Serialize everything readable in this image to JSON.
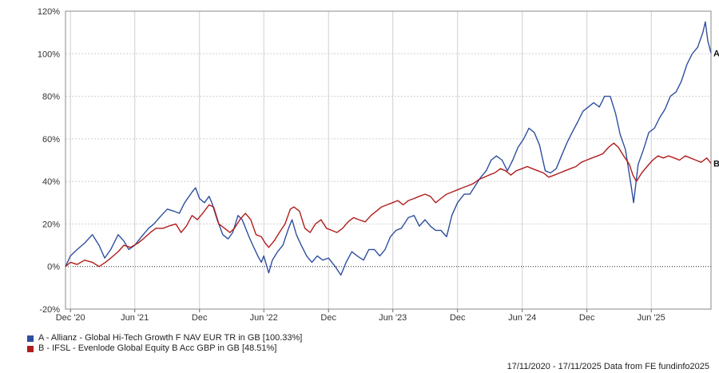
{
  "chart_data": {
    "type": "line",
    "title": "",
    "xlabel": "",
    "ylabel": "",
    "ylim": [
      -20,
      120
    ],
    "yticks": [
      -20,
      0,
      20,
      40,
      60,
      80,
      100,
      120
    ],
    "ytick_labels": [
      "-20%",
      "0%",
      "20%",
      "40%",
      "60%",
      "80%",
      "100%",
      "120%"
    ],
    "x_start": "2020-11-17",
    "x_end": "2025-11-17",
    "xticks": [
      {
        "date": "2020-12-01",
        "label": "Dec '20"
      },
      {
        "date": "2021-06-01",
        "label": "Jun '21"
      },
      {
        "date": "2021-12-01",
        "label": "Dec"
      },
      {
        "date": "2022-06-01",
        "label": "Jun '22"
      },
      {
        "date": "2022-12-01",
        "label": "Dec"
      },
      {
        "date": "2023-06-01",
        "label": "Jun '23"
      },
      {
        "date": "2023-12-01",
        "label": "Dec"
      },
      {
        "date": "2024-06-01",
        "label": "Jun '24"
      },
      {
        "date": "2024-12-01",
        "label": "Dec"
      },
      {
        "date": "2025-06-01",
        "label": "Jun '25"
      }
    ],
    "grid": true,
    "zero_line": "dotted",
    "legend_position": "bottom-left",
    "series": [
      {
        "name": "A - Allianz - Global Hi-Tech Growth F NAV EUR TR in GB [100.33%]",
        "end_label": "A",
        "color": "#2e4f9e",
        "points": [
          [
            "2020-11-17",
            0
          ],
          [
            "2020-12-01",
            5
          ],
          [
            "2020-12-20",
            8
          ],
          [
            "2021-01-10",
            11
          ],
          [
            "2021-02-01",
            15
          ],
          [
            "2021-02-20",
            10
          ],
          [
            "2021-03-08",
            4
          ],
          [
            "2021-03-25",
            8
          ],
          [
            "2021-04-15",
            15
          ],
          [
            "2021-05-01",
            12
          ],
          [
            "2021-05-15",
            8
          ],
          [
            "2021-06-01",
            10
          ],
          [
            "2021-06-20",
            14
          ],
          [
            "2021-07-10",
            18
          ],
          [
            "2021-07-25",
            20
          ],
          [
            "2021-08-15",
            24
          ],
          [
            "2021-09-01",
            27
          ],
          [
            "2021-09-20",
            26
          ],
          [
            "2021-10-05",
            25
          ],
          [
            "2021-10-20",
            30
          ],
          [
            "2021-11-10",
            35
          ],
          [
            "2021-11-20",
            37
          ],
          [
            "2021-12-01",
            32
          ],
          [
            "2021-12-15",
            30
          ],
          [
            "2021-12-28",
            33
          ],
          [
            "2022-01-05",
            30
          ],
          [
            "2022-01-20",
            22
          ],
          [
            "2022-02-05",
            15
          ],
          [
            "2022-02-20",
            13
          ],
          [
            "2022-03-05",
            16
          ],
          [
            "2022-03-20",
            24
          ],
          [
            "2022-04-01",
            22
          ],
          [
            "2022-04-20",
            14
          ],
          [
            "2022-05-01",
            10
          ],
          [
            "2022-05-15",
            5
          ],
          [
            "2022-05-25",
            2
          ],
          [
            "2022-06-01",
            5
          ],
          [
            "2022-06-15",
            -3
          ],
          [
            "2022-06-25",
            3
          ],
          [
            "2022-07-10",
            7
          ],
          [
            "2022-07-25",
            10
          ],
          [
            "2022-08-10",
            18
          ],
          [
            "2022-08-20",
            22
          ],
          [
            "2022-09-01",
            15
          ],
          [
            "2022-09-15",
            10
          ],
          [
            "2022-09-30",
            5
          ],
          [
            "2022-10-15",
            2
          ],
          [
            "2022-10-30",
            5
          ],
          [
            "2022-11-15",
            3
          ],
          [
            "2022-12-01",
            4
          ],
          [
            "2022-12-20",
            0
          ],
          [
            "2023-01-05",
            -4
          ],
          [
            "2023-01-20",
            2
          ],
          [
            "2023-02-05",
            7
          ],
          [
            "2023-02-20",
            5
          ],
          [
            "2023-03-10",
            3
          ],
          [
            "2023-03-25",
            8
          ],
          [
            "2023-04-10",
            8
          ],
          [
            "2023-04-25",
            5
          ],
          [
            "2023-05-10",
            8
          ],
          [
            "2023-05-25",
            14
          ],
          [
            "2023-06-10",
            17
          ],
          [
            "2023-06-25",
            18
          ],
          [
            "2023-07-15",
            23
          ],
          [
            "2023-07-31",
            24
          ],
          [
            "2023-08-15",
            19
          ],
          [
            "2023-08-31",
            22
          ],
          [
            "2023-09-15",
            19
          ],
          [
            "2023-09-30",
            17
          ],
          [
            "2023-10-15",
            17
          ],
          [
            "2023-10-31",
            14
          ],
          [
            "2023-11-15",
            24
          ],
          [
            "2023-12-01",
            30
          ],
          [
            "2023-12-20",
            34
          ],
          [
            "2024-01-05",
            34
          ],
          [
            "2024-01-20",
            38
          ],
          [
            "2024-02-05",
            42
          ],
          [
            "2024-02-20",
            45
          ],
          [
            "2024-03-05",
            50
          ],
          [
            "2024-03-20",
            52
          ],
          [
            "2024-04-05",
            50
          ],
          [
            "2024-04-20",
            45
          ],
          [
            "2024-05-05",
            50
          ],
          [
            "2024-05-20",
            56
          ],
          [
            "2024-06-05",
            60
          ],
          [
            "2024-06-20",
            65
          ],
          [
            "2024-07-05",
            63
          ],
          [
            "2024-07-20",
            57
          ],
          [
            "2024-08-05",
            45
          ],
          [
            "2024-08-20",
            44
          ],
          [
            "2024-09-05",
            46
          ],
          [
            "2024-09-20",
            52
          ],
          [
            "2024-10-05",
            58
          ],
          [
            "2024-10-20",
            63
          ],
          [
            "2024-11-05",
            68
          ],
          [
            "2024-11-20",
            73
          ],
          [
            "2024-12-05",
            75
          ],
          [
            "2024-12-20",
            77
          ],
          [
            "2025-01-05",
            75
          ],
          [
            "2025-01-20",
            80
          ],
          [
            "2025-02-05",
            80
          ],
          [
            "2025-02-20",
            72
          ],
          [
            "2025-03-05",
            62
          ],
          [
            "2025-03-20",
            55
          ],
          [
            "2025-04-05",
            38
          ],
          [
            "2025-04-12",
            30
          ],
          [
            "2025-04-25",
            48
          ],
          [
            "2025-05-10",
            55
          ],
          [
            "2025-05-25",
            63
          ],
          [
            "2025-06-10",
            65
          ],
          [
            "2025-06-25",
            70
          ],
          [
            "2025-07-10",
            74
          ],
          [
            "2025-07-25",
            80
          ],
          [
            "2025-08-10",
            82
          ],
          [
            "2025-08-25",
            87
          ],
          [
            "2025-09-10",
            95
          ],
          [
            "2025-09-25",
            100
          ],
          [
            "2025-10-10",
            103
          ],
          [
            "2025-10-25",
            110
          ],
          [
            "2025-11-01",
            115
          ],
          [
            "2025-11-08",
            106
          ],
          [
            "2025-11-17",
            100.33
          ]
        ]
      },
      {
        "name": "B - IFSL - Evenlode Global Equity B Acc GBP in GB [48.51%]",
        "end_label": "B",
        "color": "#b01c1c",
        "points": [
          [
            "2020-11-17",
            0
          ],
          [
            "2020-12-01",
            2
          ],
          [
            "2020-12-20",
            1
          ],
          [
            "2021-01-10",
            3
          ],
          [
            "2021-02-01",
            2
          ],
          [
            "2021-02-20",
            0
          ],
          [
            "2021-03-10",
            2
          ],
          [
            "2021-03-25",
            4
          ],
          [
            "2021-04-15",
            7
          ],
          [
            "2021-05-01",
            10
          ],
          [
            "2021-05-20",
            9
          ],
          [
            "2021-06-10",
            11
          ],
          [
            "2021-06-25",
            13
          ],
          [
            "2021-07-15",
            16
          ],
          [
            "2021-07-31",
            18
          ],
          [
            "2021-08-20",
            18
          ],
          [
            "2021-09-05",
            19
          ],
          [
            "2021-09-25",
            20
          ],
          [
            "2021-10-10",
            16
          ],
          [
            "2021-10-25",
            19
          ],
          [
            "2021-11-10",
            24
          ],
          [
            "2021-11-25",
            22
          ],
          [
            "2021-12-10",
            25
          ],
          [
            "2021-12-28",
            29
          ],
          [
            "2022-01-10",
            28
          ],
          [
            "2022-01-25",
            20
          ],
          [
            "2022-02-10",
            18
          ],
          [
            "2022-02-25",
            16
          ],
          [
            "2022-03-10",
            18
          ],
          [
            "2022-03-25",
            22
          ],
          [
            "2022-04-10",
            25
          ],
          [
            "2022-04-25",
            22
          ],
          [
            "2022-05-10",
            15
          ],
          [
            "2022-05-25",
            14
          ],
          [
            "2022-06-05",
            11
          ],
          [
            "2022-06-15",
            9
          ],
          [
            "2022-06-30",
            12
          ],
          [
            "2022-07-15",
            16
          ],
          [
            "2022-07-31",
            20
          ],
          [
            "2022-08-15",
            27
          ],
          [
            "2022-08-25",
            28
          ],
          [
            "2022-09-10",
            26
          ],
          [
            "2022-09-25",
            18
          ],
          [
            "2022-10-10",
            16
          ],
          [
            "2022-10-25",
            20
          ],
          [
            "2022-11-10",
            22
          ],
          [
            "2022-11-25",
            18
          ],
          [
            "2022-12-10",
            17
          ],
          [
            "2022-12-25",
            16
          ],
          [
            "2023-01-10",
            18
          ],
          [
            "2023-01-25",
            21
          ],
          [
            "2023-02-10",
            23
          ],
          [
            "2023-02-25",
            22
          ],
          [
            "2023-03-15",
            21
          ],
          [
            "2023-03-31",
            24
          ],
          [
            "2023-04-15",
            26
          ],
          [
            "2023-04-30",
            28
          ],
          [
            "2023-05-15",
            29
          ],
          [
            "2023-05-31",
            30
          ],
          [
            "2023-06-15",
            31
          ],
          [
            "2023-06-30",
            29
          ],
          [
            "2023-07-15",
            31
          ],
          [
            "2023-07-31",
            32
          ],
          [
            "2023-08-15",
            33
          ],
          [
            "2023-08-31",
            34
          ],
          [
            "2023-09-15",
            33
          ],
          [
            "2023-09-30",
            30
          ],
          [
            "2023-10-15",
            32
          ],
          [
            "2023-10-31",
            34
          ],
          [
            "2023-11-15",
            35
          ],
          [
            "2023-11-30",
            36
          ],
          [
            "2023-12-15",
            37
          ],
          [
            "2023-12-31",
            38
          ],
          [
            "2024-01-15",
            39
          ],
          [
            "2024-01-31",
            41
          ],
          [
            "2024-02-15",
            42
          ],
          [
            "2024-02-28",
            43
          ],
          [
            "2024-03-15",
            44
          ],
          [
            "2024-03-31",
            46
          ],
          [
            "2024-04-15",
            45
          ],
          [
            "2024-04-30",
            43
          ],
          [
            "2024-05-15",
            45
          ],
          [
            "2024-05-31",
            46
          ],
          [
            "2024-06-15",
            47
          ],
          [
            "2024-06-30",
            46
          ],
          [
            "2024-07-15",
            45
          ],
          [
            "2024-07-31",
            44
          ],
          [
            "2024-08-15",
            42
          ],
          [
            "2024-08-31",
            43
          ],
          [
            "2024-09-15",
            44
          ],
          [
            "2024-09-30",
            45
          ],
          [
            "2024-10-15",
            46
          ],
          [
            "2024-10-31",
            47
          ],
          [
            "2024-11-15",
            49
          ],
          [
            "2024-11-30",
            50
          ],
          [
            "2024-12-15",
            51
          ],
          [
            "2024-12-31",
            52
          ],
          [
            "2025-01-15",
            53
          ],
          [
            "2025-01-31",
            56
          ],
          [
            "2025-02-15",
            58
          ],
          [
            "2025-02-28",
            56
          ],
          [
            "2025-03-15",
            52
          ],
          [
            "2025-03-31",
            48
          ],
          [
            "2025-04-10",
            43
          ],
          [
            "2025-04-20",
            40
          ],
          [
            "2025-05-05",
            44
          ],
          [
            "2025-05-20",
            47
          ],
          [
            "2025-06-05",
            50
          ],
          [
            "2025-06-20",
            52
          ],
          [
            "2025-07-05",
            51
          ],
          [
            "2025-07-20",
            52
          ],
          [
            "2025-08-05",
            51
          ],
          [
            "2025-08-20",
            50
          ],
          [
            "2025-09-05",
            52
          ],
          [
            "2025-09-20",
            51
          ],
          [
            "2025-10-05",
            50
          ],
          [
            "2025-10-20",
            49
          ],
          [
            "2025-11-05",
            51
          ],
          [
            "2025-11-17",
            48.51
          ]
        ]
      }
    ]
  },
  "legend": {
    "items": [
      {
        "label": "A - Allianz - Global Hi-Tech Growth F NAV EUR TR in GB [100.33%]",
        "color": "#2e4f9e"
      },
      {
        "label": "B - IFSL - Evenlode Global Equity B Acc GBP in GB [48.51%]",
        "color": "#b01c1c"
      }
    ]
  },
  "source_text": "17/11/2020 - 17/11/2025 Data from FE fundinfo2025"
}
